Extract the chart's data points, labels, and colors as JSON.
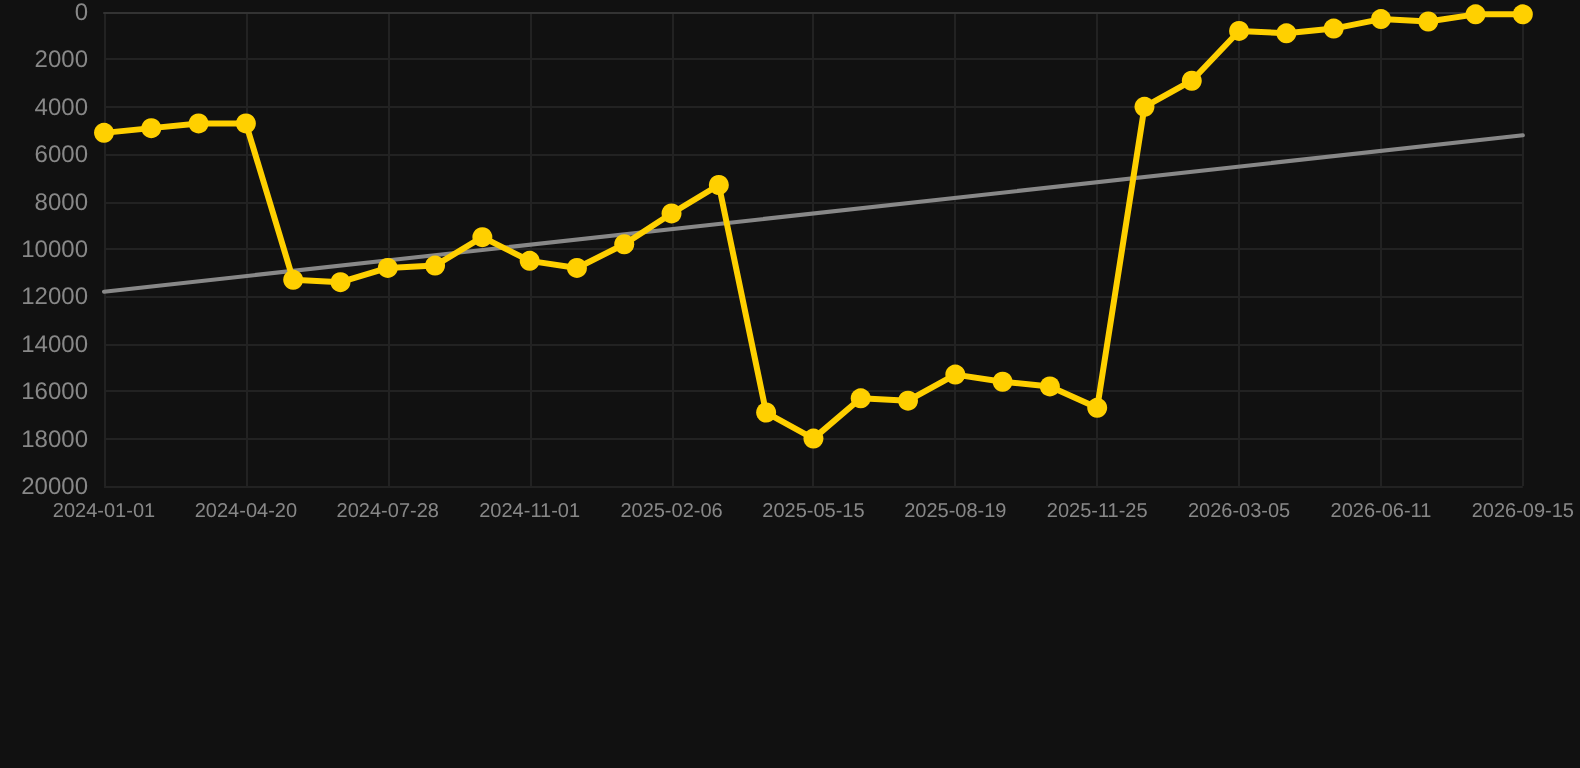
{
  "chart_data": {
    "type": "line",
    "categories": [
      "2024-01-01",
      null,
      null,
      "2024-04-20",
      null,
      null,
      "2024-07-28",
      null,
      null,
      "2024-11-01",
      null,
      null,
      "2025-02-06",
      null,
      null,
      "2025-05-15",
      null,
      null,
      "2025-08-19",
      null,
      null,
      "2025-11-25",
      null,
      null,
      "2026-03-05",
      null,
      null,
      "2026-06-11",
      null,
      null,
      "2026-09-15"
    ],
    "series": [
      {
        "color": "#ffd000",
        "marker": "circle",
        "values": [
          5100,
          4900,
          4700,
          4700,
          11300,
          11400,
          10800,
          10700,
          9500,
          10500,
          10800,
          9800,
          8500,
          7300,
          16900,
          18000,
          16300,
          16400,
          15300,
          15600,
          15800,
          16700,
          4000,
          2900,
          800,
          900,
          700,
          300,
          400,
          100,
          100
        ]
      },
      {
        "type": "line",
        "color": "#888888",
        "marker": "none",
        "values": [
          11800,
          null,
          null,
          null,
          null,
          null,
          null,
          null,
          null,
          null,
          null,
          null,
          null,
          null,
          null,
          null,
          null,
          null,
          null,
          null,
          null,
          null,
          null,
          null,
          null,
          null,
          null,
          null,
          null,
          null,
          5200
        ]
      }
    ],
    "ylim": [
      20000,
      0
    ],
    "yticks": [
      0,
      2000,
      4000,
      6000,
      8000,
      10000,
      12000,
      14000,
      16000,
      18000,
      20000
    ],
    "grid": true
  }
}
